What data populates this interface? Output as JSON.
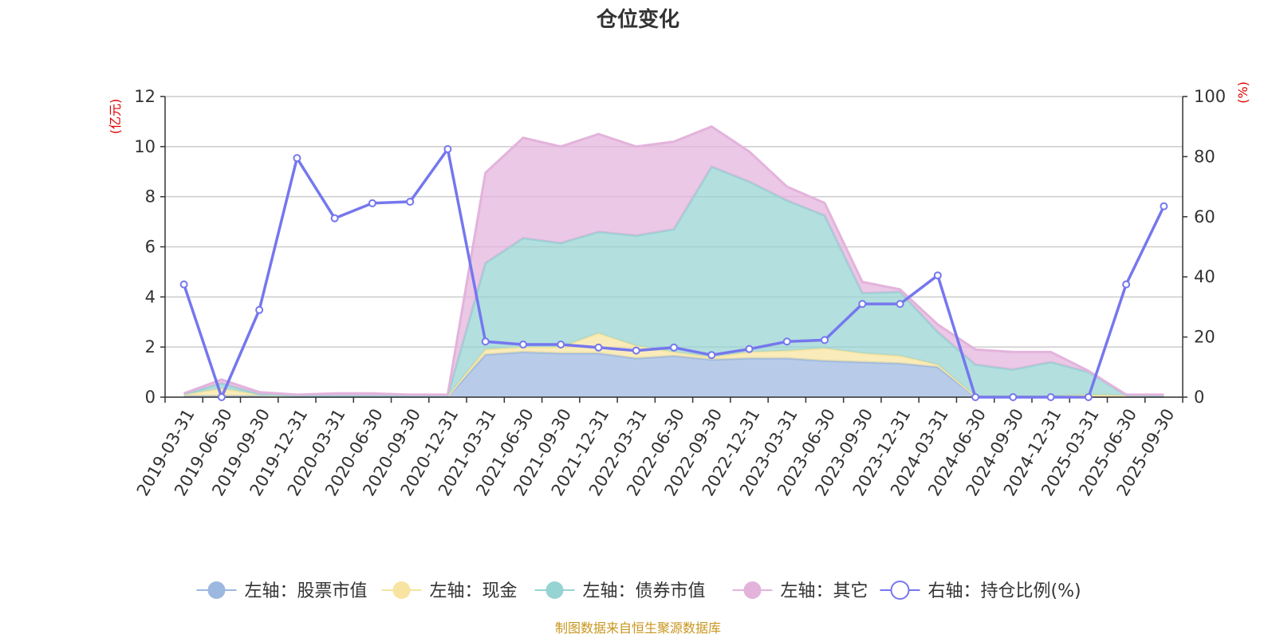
{
  "chart_data": {
    "type": "area",
    "title": "仓位变化",
    "left_axis_unit": "(亿元)",
    "right_axis_unit": "(%)",
    "ylim_left": [
      0,
      12
    ],
    "yticks_left": [
      0,
      2,
      4,
      6,
      8,
      10,
      12
    ],
    "ylim_right": [
      0,
      100
    ],
    "yticks_right": [
      0,
      20,
      40,
      60,
      80,
      100
    ],
    "grid": true,
    "legend_position": "bottom",
    "categories": [
      "2019-03-31",
      "2019-06-30",
      "2019-09-30",
      "2019-12-31",
      "2020-03-31",
      "2020-06-30",
      "2020-09-30",
      "2020-12-31",
      "2021-03-31",
      "2021-06-30",
      "2021-09-30",
      "2021-12-31",
      "2022-03-31",
      "2022-06-30",
      "2022-09-30",
      "2022-12-31",
      "2023-03-31",
      "2023-06-30",
      "2023-09-30",
      "2023-12-31",
      "2024-03-31",
      "2024-06-30",
      "2024-09-30",
      "2024-12-31",
      "2025-03-31",
      "2025-06-30",
      "2025-09-30"
    ],
    "series": [
      {
        "name": "左轴：股票市值",
        "axis": "left",
        "stacked": true,
        "color": "#9db8e0",
        "values": [
          0.05,
          0.05,
          0.05,
          0.02,
          0.02,
          0.02,
          0.02,
          0.02,
          1.7,
          1.8,
          1.75,
          1.75,
          1.55,
          1.65,
          1.5,
          1.55,
          1.55,
          1.45,
          1.4,
          1.35,
          1.2,
          0.02,
          0.02,
          0.02,
          0.02,
          0.02,
          0.02
        ]
      },
      {
        "name": "左轴：现金",
        "axis": "left",
        "stacked": true,
        "color": "#f8e4a0",
        "values": [
          0.05,
          0.3,
          0.05,
          0.02,
          0.02,
          0.02,
          0.02,
          0.02,
          0.2,
          0.2,
          0.25,
          0.8,
          0.5,
          0.15,
          0.1,
          0.25,
          0.3,
          0.5,
          0.35,
          0.3,
          0.1,
          0.02,
          0.02,
          0.02,
          0.08,
          0.04,
          0.02
        ]
      },
      {
        "name": "左轴：债券市值",
        "axis": "left",
        "stacked": true,
        "color": "#96d3d3",
        "values": [
          0.02,
          0.2,
          0.02,
          0.02,
          0.02,
          0.02,
          0.02,
          0.02,
          3.45,
          4.35,
          4.15,
          4.05,
          4.4,
          4.9,
          7.6,
          6.8,
          6.0,
          5.3,
          2.4,
          2.55,
          1.3,
          1.26,
          1.06,
          1.36,
          0.9,
          0.02,
          0.02
        ]
      },
      {
        "name": "左轴：其它",
        "axis": "left",
        "stacked": true,
        "color": "#e3b3dc",
        "values": [
          0.03,
          0.15,
          0.08,
          0.04,
          0.09,
          0.09,
          0.04,
          0.04,
          3.6,
          4.0,
          3.85,
          3.9,
          3.55,
          3.5,
          1.6,
          1.2,
          0.55,
          0.5,
          0.45,
          0.1,
          0.3,
          0.6,
          0.7,
          0.4,
          0.05,
          0.02,
          0.04
        ]
      },
      {
        "name": "右轴：持仓比例(%)",
        "axis": "right",
        "type": "line",
        "color": "#7577ee",
        "values": [
          37.5,
          0,
          29,
          79.5,
          59.5,
          64.5,
          65,
          82.5,
          18.5,
          17.5,
          17.5,
          16.5,
          15.5,
          16.5,
          14,
          16,
          18.5,
          19,
          31,
          31,
          40.5,
          0,
          0,
          0,
          0,
          37.5,
          63.5
        ]
      }
    ],
    "source_text": "制图数据来自恒生聚源数据库"
  }
}
